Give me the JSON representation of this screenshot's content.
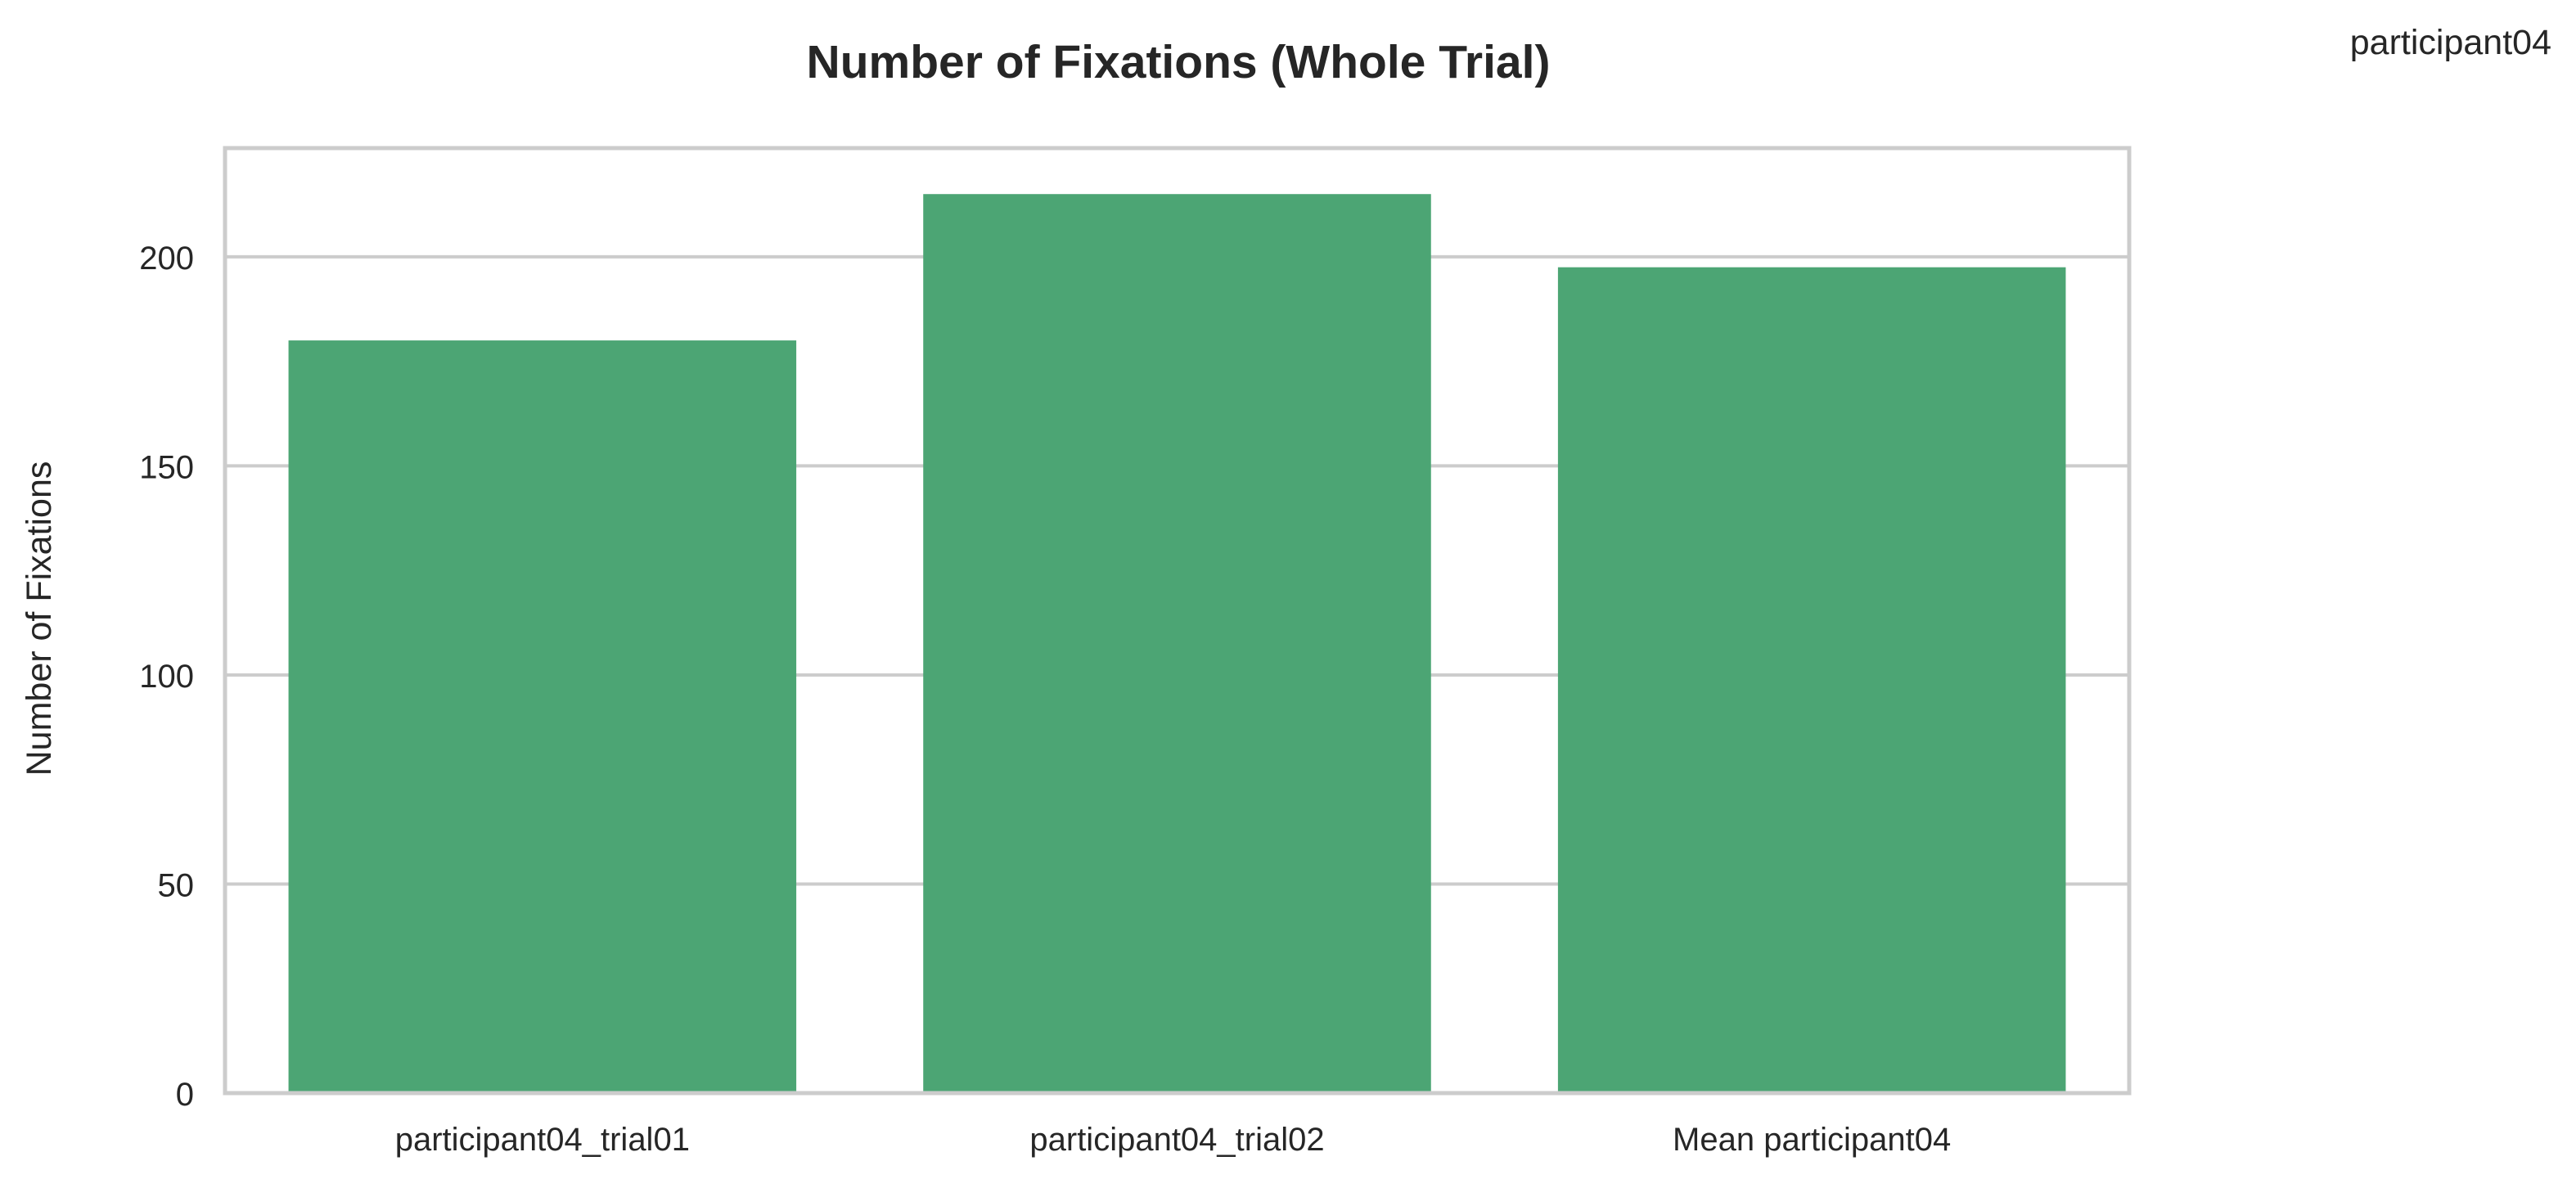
{
  "chart_data": {
    "type": "bar",
    "title": "Number of Fixations (Whole Trial)",
    "corner_label": "participant04",
    "xlabel": "",
    "ylabel": "Number of Fixations",
    "categories": [
      "participant04_trial01",
      "participant04_trial02",
      "Mean participant04"
    ],
    "series": [
      {
        "values": [
          180,
          215,
          197.5
        ]
      }
    ],
    "ylim": [
      0,
      226
    ],
    "yticks": [
      "0",
      "50",
      "100",
      "150",
      "200"
    ],
    "grid": true,
    "bar_color": "#4ca574",
    "grid_color": "#cccccc"
  }
}
